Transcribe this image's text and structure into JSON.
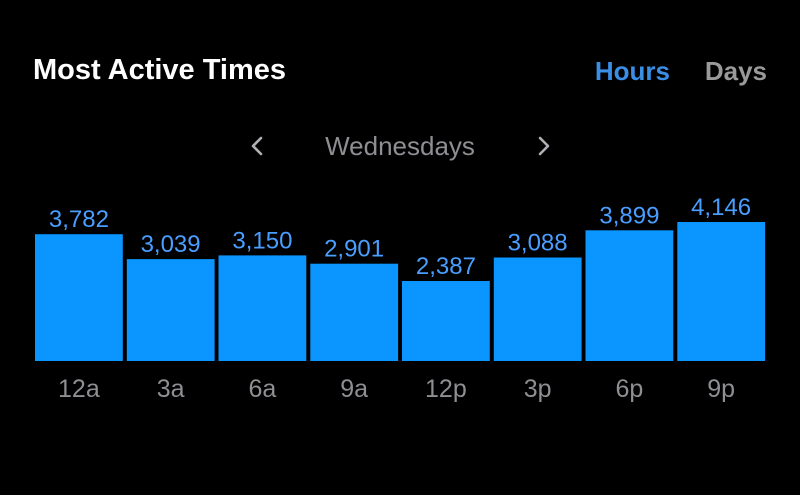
{
  "header": {
    "title": "Most Active Times",
    "toggle_hours": "Hours",
    "toggle_days": "Days"
  },
  "day_nav": {
    "label": "Wednesdays",
    "prev_icon": "chevron-left-icon",
    "next_icon": "chevron-right-icon"
  },
  "colors": {
    "background": "#000000",
    "bar": "#0a95ff",
    "bar_label": "#4a9eff",
    "tick_label": "#8e8e93",
    "active_toggle": "#3a8ee6",
    "inactive_toggle": "#9a9a9a"
  },
  "chart_data": {
    "type": "bar",
    "categories": [
      "12a",
      "3a",
      "6a",
      "9a",
      "12p",
      "3p",
      "6p",
      "9p"
    ],
    "values": [
      3782,
      3039,
      3150,
      2901,
      2387,
      3088,
      3899,
      4146
    ],
    "value_labels": [
      "3,782",
      "3,039",
      "3,150",
      "2,901",
      "2,387",
      "3,088",
      "3,899",
      "4,146"
    ],
    "ylim": [
      0,
      4146
    ],
    "grid": false,
    "legend": "none"
  }
}
